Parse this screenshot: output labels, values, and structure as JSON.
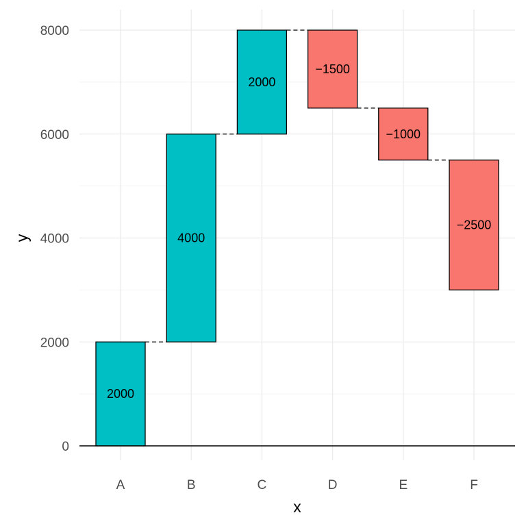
{
  "chart_data": {
    "type": "bar",
    "subtype": "waterfall",
    "categories": [
      "A",
      "B",
      "C",
      "D",
      "E",
      "F"
    ],
    "deltas": [
      2000,
      4000,
      2000,
      -1500,
      -1000,
      -2500
    ],
    "starts": [
      0,
      2000,
      6000,
      8000,
      6500,
      5500
    ],
    "ends": [
      2000,
      6000,
      8000,
      6500,
      5500,
      3000
    ],
    "bar_labels": [
      "2000",
      "4000",
      "2000",
      "−1500",
      "−1000",
      "−2500"
    ],
    "xlabel": "x",
    "ylabel": "y",
    "ylim": [
      0,
      8000
    ],
    "yticks": [
      0,
      2000,
      4000,
      6000,
      8000
    ],
    "ytick_labels": [
      "0",
      "2000",
      "4000",
      "6000",
      "8000"
    ],
    "grid": true,
    "connectors": "dashed",
    "colors": {
      "increase": "#00BFC4",
      "decrease": "#F8766D",
      "outline": "#000000",
      "grid": "#ebebeb"
    }
  }
}
